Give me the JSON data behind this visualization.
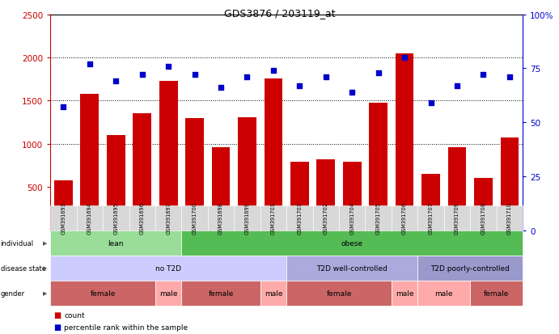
{
  "title": "GDS3876 / 203119_at",
  "samples": [
    "GSM391693",
    "GSM391694",
    "GSM391695",
    "GSM391696",
    "GSM391697",
    "GSM391700",
    "GSM391698",
    "GSM391699",
    "GSM391701",
    "GSM391703",
    "GSM391702",
    "GSM391704",
    "GSM391705",
    "GSM391706",
    "GSM391707",
    "GSM391709",
    "GSM391708",
    "GSM391710"
  ],
  "counts": [
    580,
    1580,
    1100,
    1350,
    1730,
    1300,
    960,
    1310,
    1760,
    790,
    820,
    790,
    1480,
    2050,
    650,
    960,
    610,
    1070
  ],
  "percentiles": [
    57,
    77,
    69,
    72,
    76,
    72,
    66,
    71,
    74,
    67,
    71,
    64,
    73,
    80,
    59,
    67,
    72,
    71
  ],
  "bar_color": "#cc0000",
  "dot_color": "#0000cc",
  "ylim_left": [
    0,
    2500
  ],
  "ylim_right": [
    0,
    100
  ],
  "yticks_left": [
    500,
    1000,
    1500,
    2000,
    2500
  ],
  "yticks_right": [
    0,
    25,
    50,
    75,
    100
  ],
  "individual_groups": [
    {
      "label": "lean",
      "start": 0,
      "end": 5,
      "color": "#99dd99"
    },
    {
      "label": "obese",
      "start": 5,
      "end": 18,
      "color": "#55bb55"
    }
  ],
  "disease_groups": [
    {
      "label": "no T2D",
      "start": 0,
      "end": 9,
      "color": "#ccccff"
    },
    {
      "label": "T2D well-controlled",
      "start": 9,
      "end": 14,
      "color": "#aaaadd"
    },
    {
      "label": "T2D poorly-controlled",
      "start": 14,
      "end": 18,
      "color": "#9999cc"
    }
  ],
  "gender_groups": [
    {
      "label": "female",
      "start": 0,
      "end": 4,
      "color": "#cc6666"
    },
    {
      "label": "male",
      "start": 4,
      "end": 5,
      "color": "#ffaaaa"
    },
    {
      "label": "female",
      "start": 5,
      "end": 8,
      "color": "#cc6666"
    },
    {
      "label": "male",
      "start": 8,
      "end": 9,
      "color": "#ffaaaa"
    },
    {
      "label": "female",
      "start": 9,
      "end": 13,
      "color": "#cc6666"
    },
    {
      "label": "male",
      "start": 13,
      "end": 14,
      "color": "#ffaaaa"
    },
    {
      "label": "male",
      "start": 14,
      "end": 16,
      "color": "#ffaaaa"
    },
    {
      "label": "female",
      "start": 16,
      "end": 18,
      "color": "#cc6666"
    }
  ],
  "row_labels": [
    "individual",
    "disease state",
    "gender"
  ],
  "legend_count_label": "count",
  "legend_pct_label": "percentile rank within the sample",
  "bg_color": "#ffffff",
  "plot_bg_color": "#ffffff",
  "grid_color": "#000000"
}
